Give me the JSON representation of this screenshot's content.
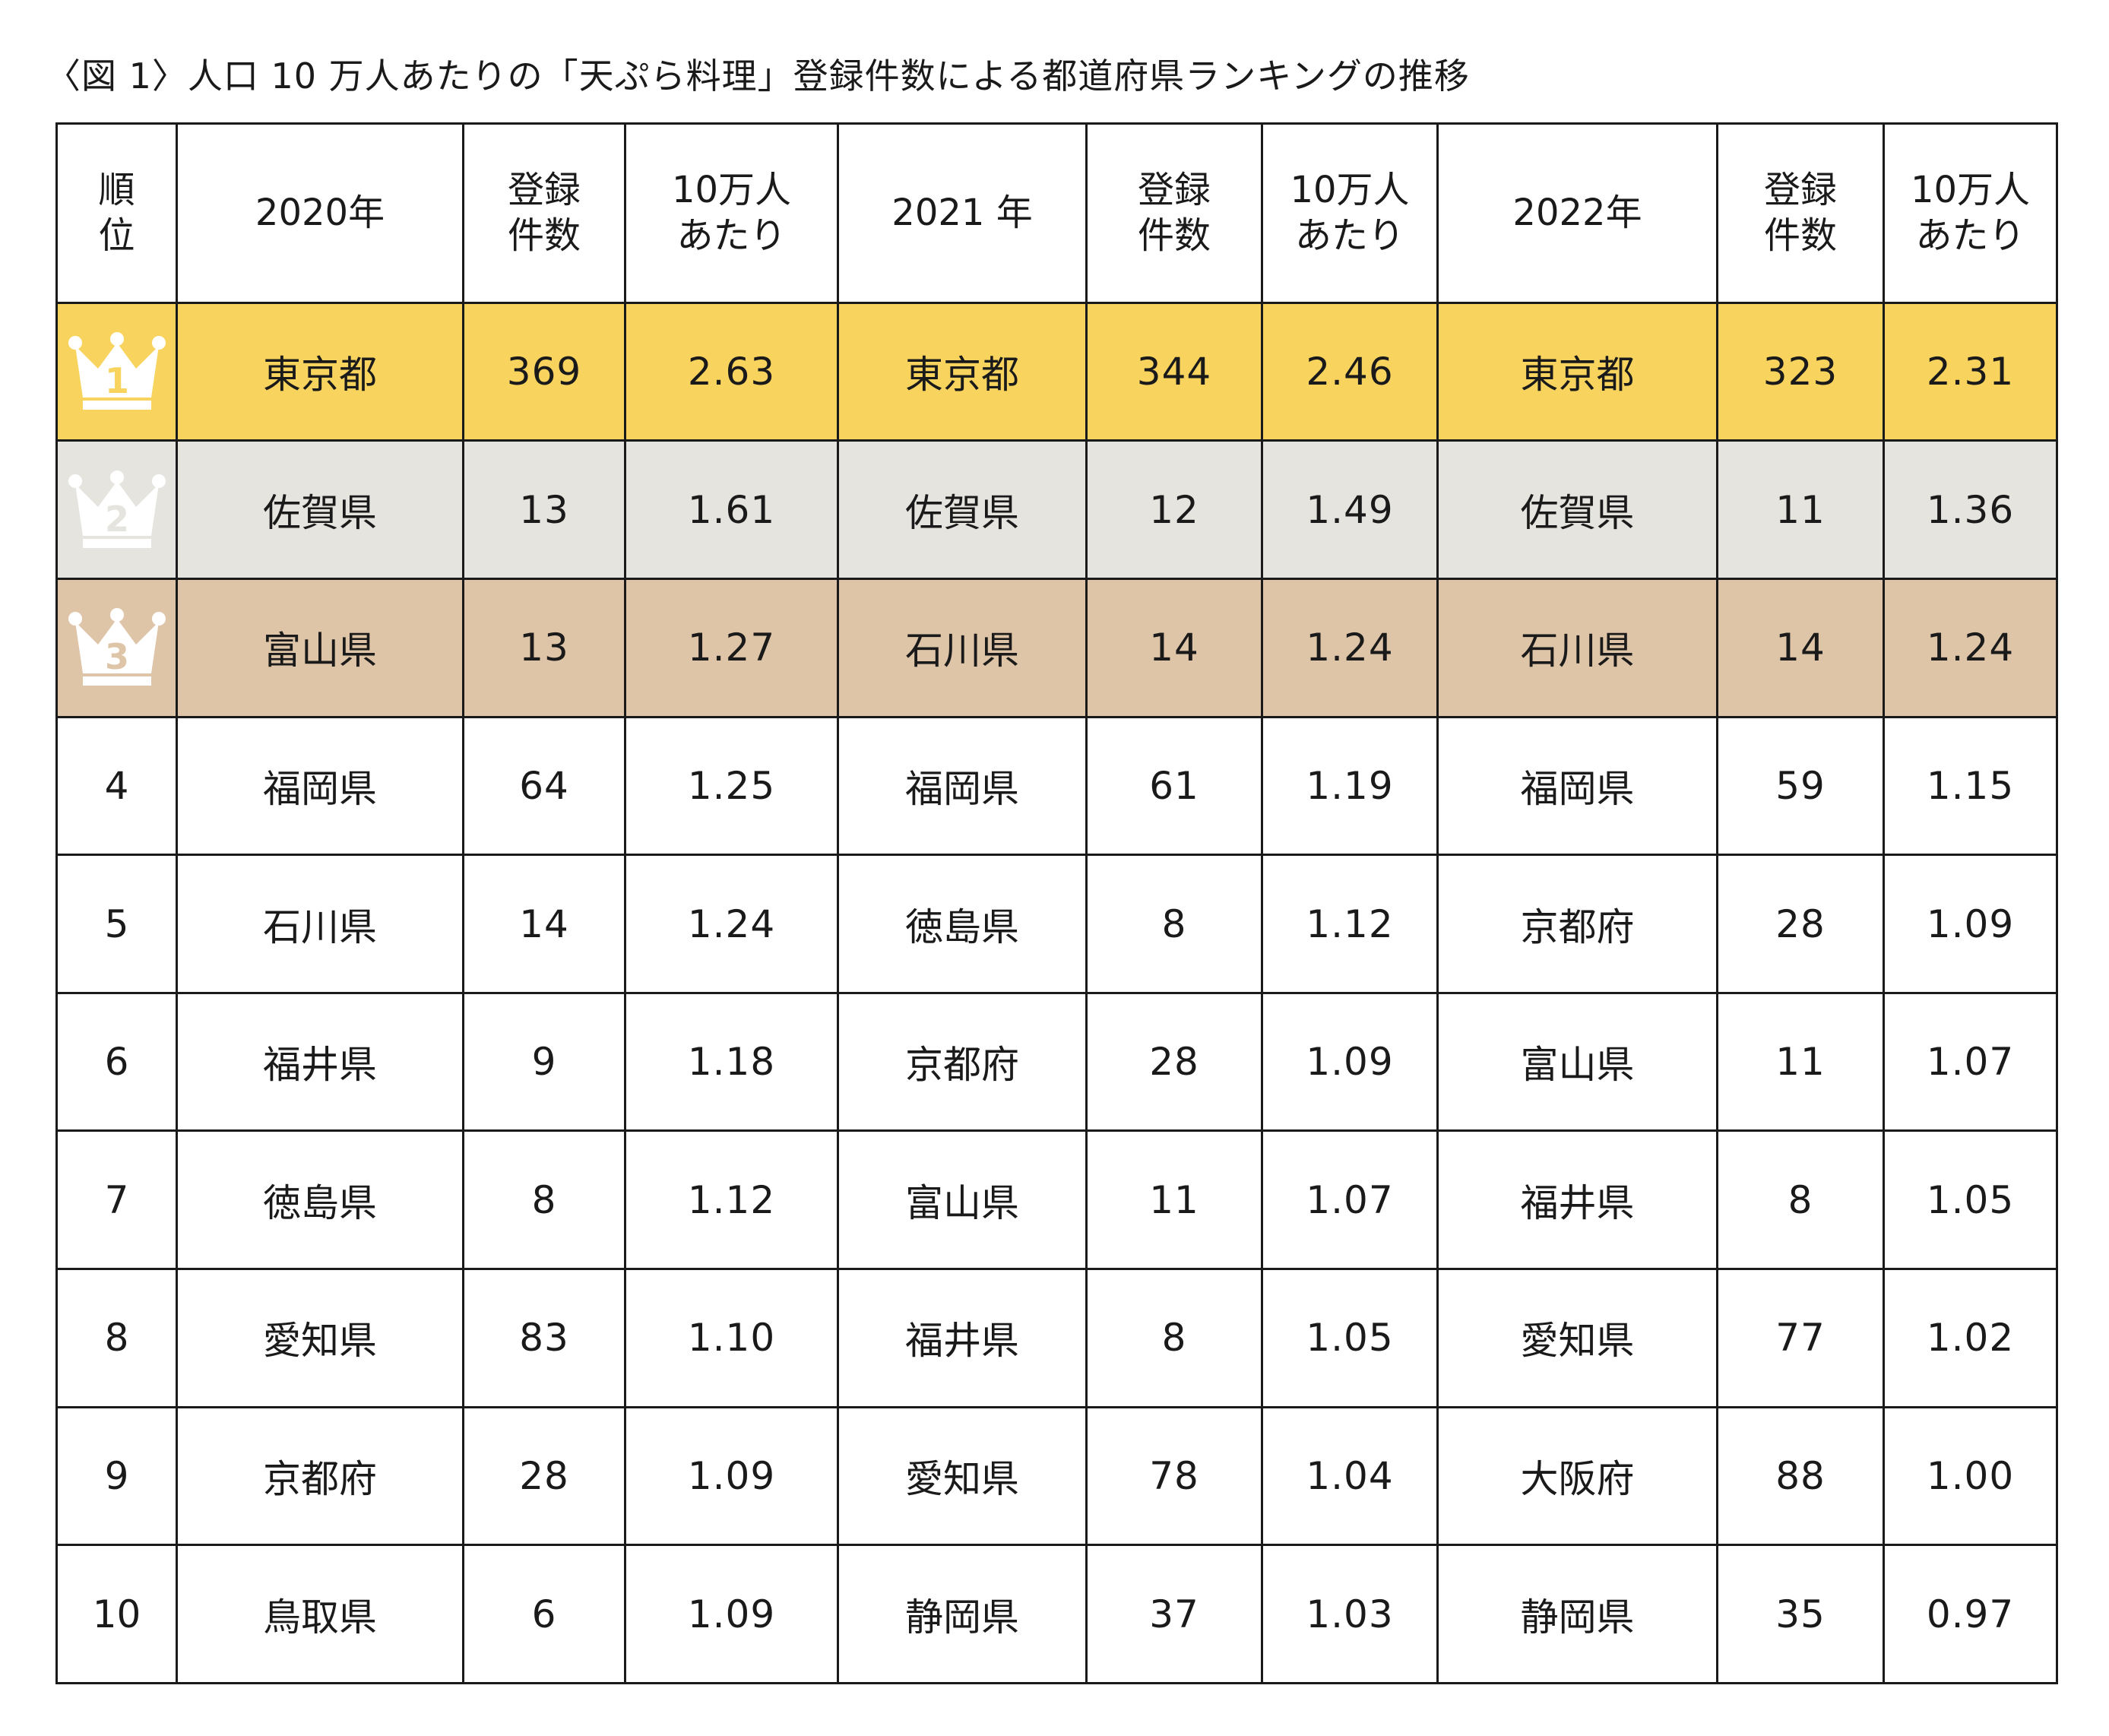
{
  "title": "〈図 1〉人口 10 万人あたりの「天ぷら料理」登録件数による都道府県ランキングの推移",
  "colors": {
    "gold": "#f8d45f",
    "silver": "#e5e4df",
    "bronze": "#dfc5a8",
    "crown": "#ffffff"
  },
  "chart_data": {
    "type": "table",
    "headers": {
      "rank": [
        "順",
        "位"
      ],
      "y2020": "2020年",
      "y2021": "2021 年",
      "y2022": "2022年",
      "count": [
        "登録",
        "件数"
      ],
      "per100k": [
        "10万人",
        "あたり"
      ]
    },
    "rows": [
      {
        "rank": "1",
        "crown": "gold-crown-icon",
        "p2020": "東京都",
        "c2020": "369",
        "r2020": "2.63",
        "p2021": "東京都",
        "c2021": "344",
        "r2021": "2.46",
        "p2022": "東京都",
        "c2022": "323",
        "r2022": "2.31"
      },
      {
        "rank": "2",
        "crown": "silver-crown-icon",
        "p2020": "佐賀県",
        "c2020": "13",
        "r2020": "1.61",
        "p2021": "佐賀県",
        "c2021": "12",
        "r2021": "1.49",
        "p2022": "佐賀県",
        "c2022": "11",
        "r2022": "1.36"
      },
      {
        "rank": "3",
        "crown": "bronze-crown-icon",
        "p2020": "富山県",
        "c2020": "13",
        "r2020": "1.27",
        "p2021": "石川県",
        "c2021": "14",
        "r2021": "1.24",
        "p2022": "石川県",
        "c2022": "14",
        "r2022": "1.24"
      },
      {
        "rank": "4",
        "p2020": "福岡県",
        "c2020": "64",
        "r2020": "1.25",
        "p2021": "福岡県",
        "c2021": "61",
        "r2021": "1.19",
        "p2022": "福岡県",
        "c2022": "59",
        "r2022": "1.15"
      },
      {
        "rank": "5",
        "p2020": "石川県",
        "c2020": "14",
        "r2020": "1.24",
        "p2021": "徳島県",
        "c2021": "8",
        "r2021": "1.12",
        "p2022": "京都府",
        "c2022": "28",
        "r2022": "1.09"
      },
      {
        "rank": "6",
        "p2020": "福井県",
        "c2020": "9",
        "r2020": "1.18",
        "p2021": "京都府",
        "c2021": "28",
        "r2021": "1.09",
        "p2022": "富山県",
        "c2022": "11",
        "r2022": "1.07"
      },
      {
        "rank": "7",
        "p2020": "徳島県",
        "c2020": "8",
        "r2020": "1.12",
        "p2021": "富山県",
        "c2021": "11",
        "r2021": "1.07",
        "p2022": "福井県",
        "c2022": "8",
        "r2022": "1.05"
      },
      {
        "rank": "8",
        "p2020": "愛知県",
        "c2020": "83",
        "r2020": "1.10",
        "p2021": "福井県",
        "c2021": "8",
        "r2021": "1.05",
        "p2022": "愛知県",
        "c2022": "77",
        "r2022": "1.02"
      },
      {
        "rank": "9",
        "p2020": "京都府",
        "c2020": "28",
        "r2020": "1.09",
        "p2021": "愛知県",
        "c2021": "78",
        "r2021": "1.04",
        "p2022": "大阪府",
        "c2022": "88",
        "r2022": "1.00"
      },
      {
        "rank": "10",
        "p2020": "鳥取県",
        "c2020": "6",
        "r2020": "1.09",
        "p2021": "静岡県",
        "c2021": "37",
        "r2021": "1.03",
        "p2022": "静岡県",
        "c2022": "35",
        "r2022": "0.97"
      }
    ]
  }
}
